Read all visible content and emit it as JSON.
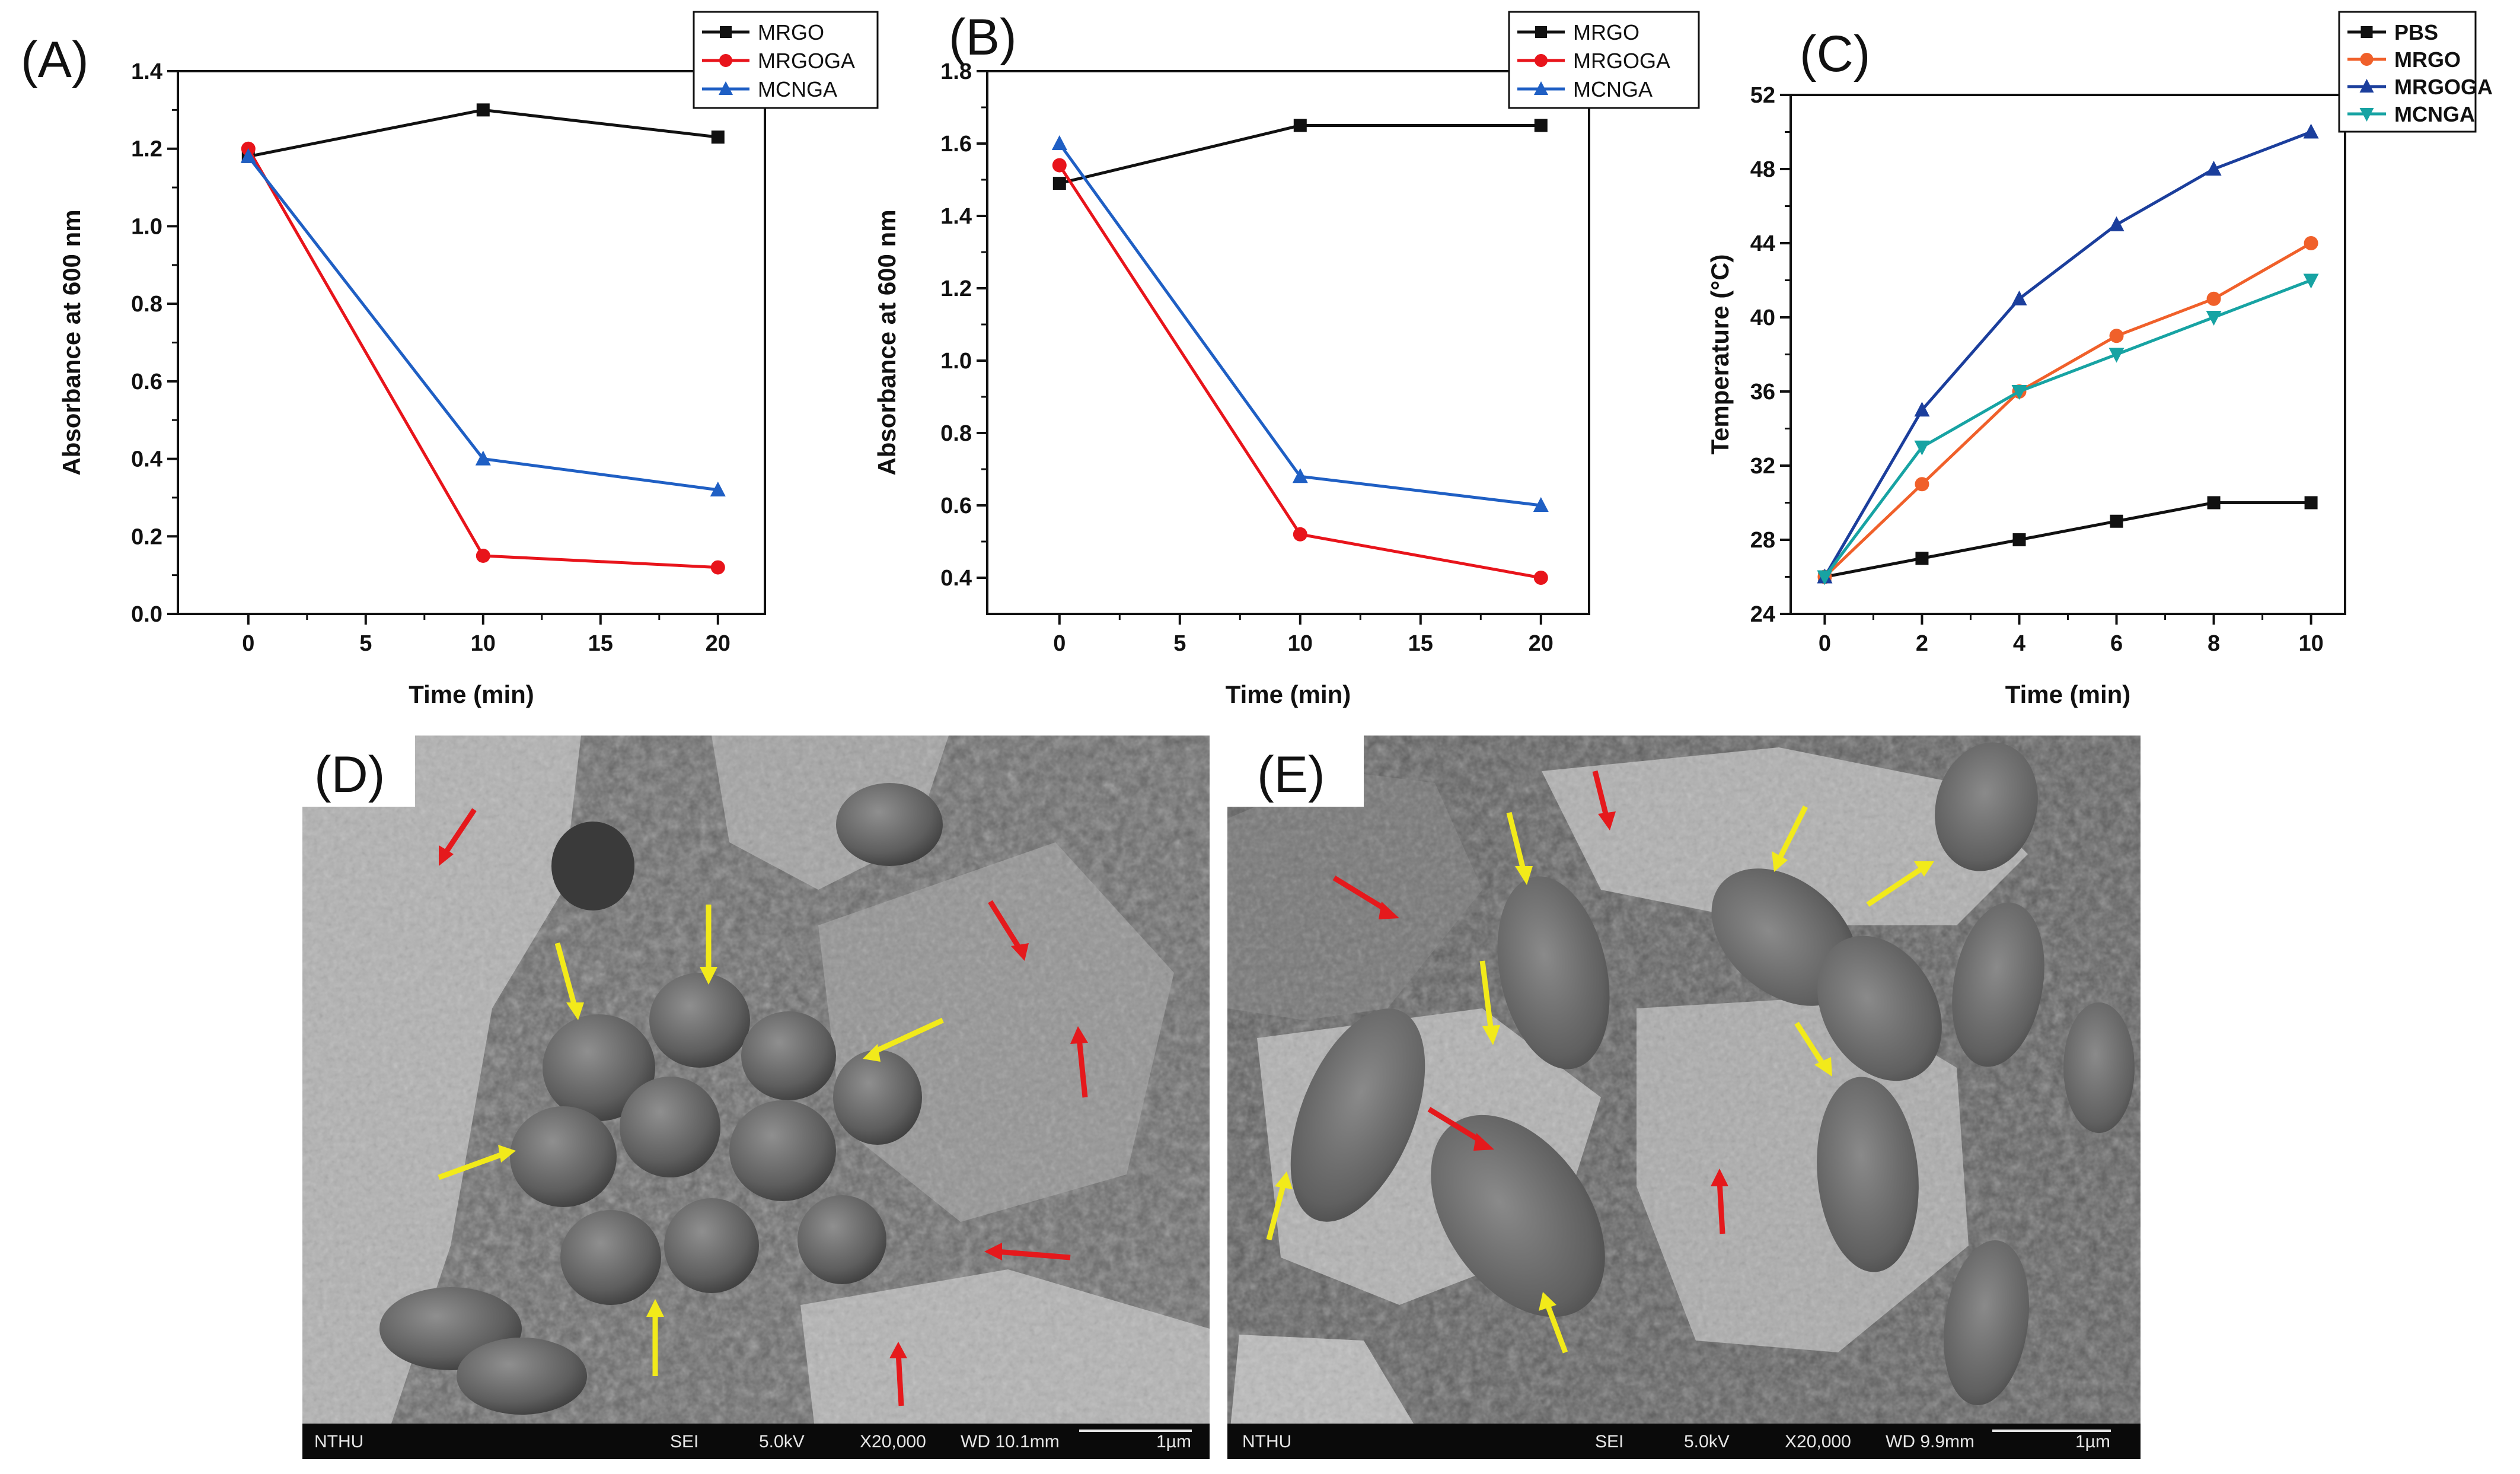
{
  "charts": [
    {
      "panel_label": "(A)",
      "type": "line",
      "ylabel": "Absorbance at 600 nm",
      "xlabel": "Time (min)",
      "xlim": [
        -3,
        22
      ],
      "ylim": [
        0,
        1.4
      ],
      "xticks": [
        0,
        5,
        10,
        15,
        20
      ],
      "yticks": [
        0.0,
        0.2,
        0.4,
        0.6,
        0.8,
        1.0,
        1.2,
        1.4
      ],
      "ytick_decimals": 1,
      "legend_style": "normal",
      "series": [
        {
          "name": "MRGO",
          "x": [
            0,
            10,
            20
          ],
          "y": [
            1.18,
            1.3,
            1.23
          ],
          "color": "#111111",
          "marker": "square"
        },
        {
          "name": "MRGOGA",
          "x": [
            0,
            10,
            20
          ],
          "y": [
            1.2,
            0.15,
            0.12
          ],
          "color": "#e8141b",
          "marker": "circle"
        },
        {
          "name": "MCNGA",
          "x": [
            0,
            10,
            20
          ],
          "y": [
            1.18,
            0.4,
            0.32
          ],
          "color": "#1f5fc4",
          "marker": "triangle"
        }
      ]
    },
    {
      "panel_label": "(B)",
      "type": "line",
      "ylabel": "Absorbance at 600 nm",
      "xlabel": "Time (min)",
      "xlim": [
        -3,
        22
      ],
      "ylim": [
        0.3,
        1.8
      ],
      "xticks": [
        0,
        5,
        10,
        15,
        20
      ],
      "yticks": [
        0.4,
        0.6,
        0.8,
        1.0,
        1.2,
        1.4,
        1.6,
        1.8
      ],
      "ytick_decimals": 1,
      "legend_style": "normal",
      "series": [
        {
          "name": "MRGO",
          "x": [
            0,
            10,
            20
          ],
          "y": [
            1.49,
            1.65,
            1.65
          ],
          "color": "#111111",
          "marker": "square"
        },
        {
          "name": "MRGOGA",
          "x": [
            0,
            10,
            20
          ],
          "y": [
            1.54,
            0.52,
            0.4
          ],
          "color": "#e8141b",
          "marker": "circle"
        },
        {
          "name": "MCNGA",
          "x": [
            0,
            10,
            20
          ],
          "y": [
            1.6,
            0.68,
            0.6
          ],
          "color": "#1f5fc4",
          "marker": "triangle"
        }
      ]
    },
    {
      "panel_label": "(C)",
      "type": "line",
      "ylabel": "Temperature (°C)",
      "xlabel": "Time (min)",
      "xlim": [
        -0.7,
        10.7
      ],
      "ylim": [
        24,
        52
      ],
      "xticks": [
        0,
        2,
        4,
        6,
        8,
        10
      ],
      "yticks": [
        24,
        28,
        32,
        36,
        40,
        44,
        48,
        52
      ],
      "ytick_decimals": 0,
      "legend_style": "bold",
      "series": [
        {
          "name": "PBS",
          "x": [
            0,
            2,
            4,
            6,
            8,
            10
          ],
          "y": [
            26,
            27,
            28,
            29,
            30,
            30
          ],
          "color": "#111111",
          "marker": "square"
        },
        {
          "name": "MRGO",
          "x": [
            0,
            2,
            4,
            6,
            8,
            10
          ],
          "y": [
            26,
            31,
            36,
            39,
            41,
            44
          ],
          "color": "#f0602a",
          "marker": "circle"
        },
        {
          "name": "MRGOGA",
          "x": [
            0,
            2,
            4,
            6,
            8,
            10
          ],
          "y": [
            26,
            35,
            41,
            45,
            48,
            50
          ],
          "color": "#1b3e9c",
          "marker": "triangle"
        },
        {
          "name": "MCNGA",
          "x": [
            0,
            2,
            4,
            6,
            8,
            10
          ],
          "y": [
            26,
            33,
            36,
            38,
            40,
            42
          ],
          "color": "#17a3a3",
          "marker": "triangle-down"
        }
      ]
    }
  ],
  "micrographs": [
    {
      "panel_label": "(D)",
      "footer": {
        "lab": "NTHU",
        "mode": "SEI",
        "voltage": "5.0kV",
        "magnification": "X20,000",
        "wd": "WD 10.1mm",
        "scale": "1µm"
      },
      "arrow_colors": {
        "bacteria": "#f2ea1a",
        "graphene": "#e5191c"
      }
    },
    {
      "panel_label": "(E)",
      "footer": {
        "lab": "NTHU",
        "mode": "SEI",
        "voltage": "5.0kV",
        "magnification": "X20,000",
        "wd": "WD 9.9mm",
        "scale": "1µm"
      },
      "arrow_colors": {
        "bacteria": "#f2ea1a",
        "graphene": "#e5191c"
      }
    }
  ]
}
